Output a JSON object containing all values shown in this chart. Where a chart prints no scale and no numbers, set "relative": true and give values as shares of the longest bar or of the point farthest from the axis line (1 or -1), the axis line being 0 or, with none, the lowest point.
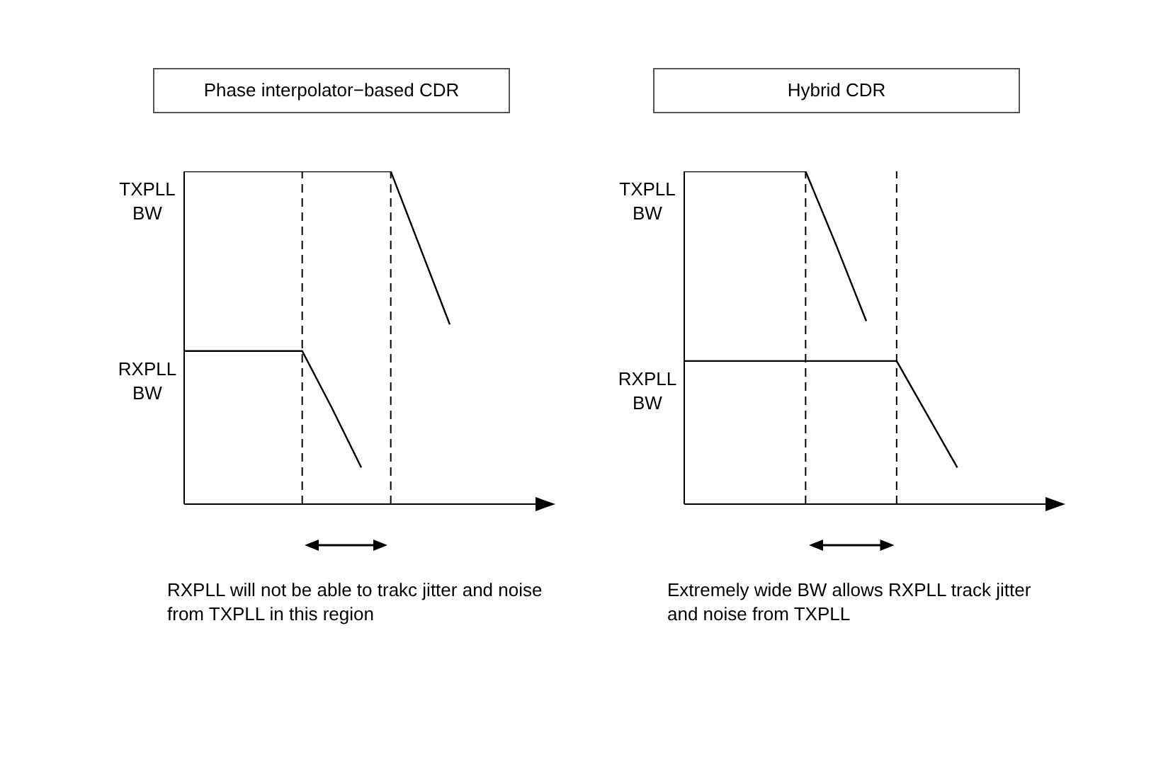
{
  "chart_data": [
    {
      "type": "line",
      "title": "Phase interpolator−based CDR",
      "relative": true,
      "legend": false,
      "marker": "none",
      "categories": [
        null,
        null,
        null,
        null,
        null,
        null,
        null,
        null,
        null,
        null,
        null,
        null,
        null
      ],
      "series": [
        {
          "name": "TXPLL BW",
          "color": "#000000",
          "values": [
            1,
            1,
            1,
            1,
            1,
            1,
            1,
            1,
            0.77,
            0.54,
            null,
            null,
            null
          ]
        },
        {
          "name": "RXPLL BW",
          "color": "#000000",
          "values": [
            0.46,
            0.46,
            0.46,
            0.46,
            0.46,
            0.29,
            0.11,
            null,
            null,
            null,
            null,
            null,
            null
          ]
        }
      ],
      "annotations": [
        "RXPLL will not be able to trakc jitter and noise from TXPLL in this region"
      ]
    },
    {
      "type": "line",
      "title": "Hybrid CDR",
      "relative": true,
      "legend": false,
      "marker": "none",
      "categories": [
        null,
        null,
        null,
        null,
        null,
        null,
        null,
        null,
        null,
        null,
        null,
        null,
        null
      ],
      "series": [
        {
          "name": "TXPLL BW",
          "color": "#000000",
          "values": [
            1,
            1,
            1,
            1,
            1,
            0.78,
            0.55,
            null,
            null,
            null,
            null,
            null,
            null
          ]
        },
        {
          "name": "RXPLL BW",
          "color": "#000000",
          "values": [
            0.43,
            0.43,
            0.43,
            0.43,
            0.43,
            0.43,
            0.43,
            0.43,
            0.27,
            0.11,
            null,
            null,
            null
          ]
        }
      ],
      "annotations": [
        "Extremely wide BW allows RXPLL track jitter and noise from TXPLL"
      ]
    }
  ]
}
